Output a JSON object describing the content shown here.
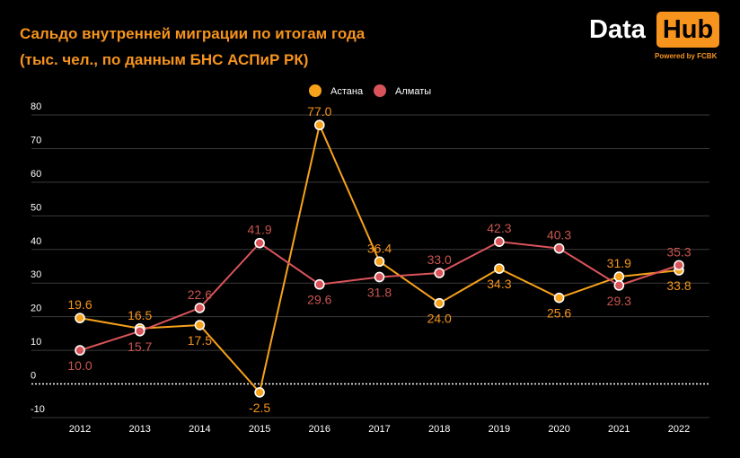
{
  "header": {
    "title_line1": "Сальдо внутренней миграции по итогам года",
    "title_line2": "(тыс. чел., по данным БНС АСПиР РК)"
  },
  "logo": {
    "data_text": "Data",
    "hub_text": "Hub",
    "powered": "Powered by FCBK"
  },
  "colors": {
    "astana": "#f7a21b",
    "almaty": "#d9545a",
    "astana_label": "#f7941d",
    "almaty_label": "#c9554f"
  },
  "chart_data": {
    "type": "line",
    "title": "Сальдо внутренней миграции по итогам года",
    "subtitle": "(тыс. чел., по данным БНС АСПиР РК)",
    "x": [
      2012,
      2013,
      2014,
      2015,
      2016,
      2017,
      2018,
      2019,
      2020,
      2021,
      2022
    ],
    "yticks": [
      -10,
      0,
      10,
      20,
      30,
      40,
      50,
      60,
      70,
      80
    ],
    "ylim": [
      -10,
      80
    ],
    "grid": true,
    "legend_position": "top-center",
    "series": [
      {
        "name": "Астана",
        "values": [
          19.6,
          16.5,
          17.5,
          -2.5,
          77.0,
          36.4,
          24.0,
          34.3,
          25.6,
          31.9,
          33.8
        ],
        "labels": [
          "19.6",
          "16.5",
          "17.5",
          "-2.5",
          "77.0",
          "36.4",
          "24.0",
          "34.3",
          "25.6",
          "31.9",
          "33.8"
        ]
      },
      {
        "name": "Алматы",
        "values": [
          10.0,
          15.7,
          22.6,
          41.9,
          29.6,
          31.8,
          33.0,
          42.3,
          40.3,
          29.3,
          35.3
        ],
        "labels": [
          "10.0",
          "15.7",
          "22.6",
          "41.9",
          "29.6",
          "31.8",
          "33.0",
          "42.3",
          "40.3",
          "29.3",
          "35.3"
        ]
      }
    ]
  }
}
